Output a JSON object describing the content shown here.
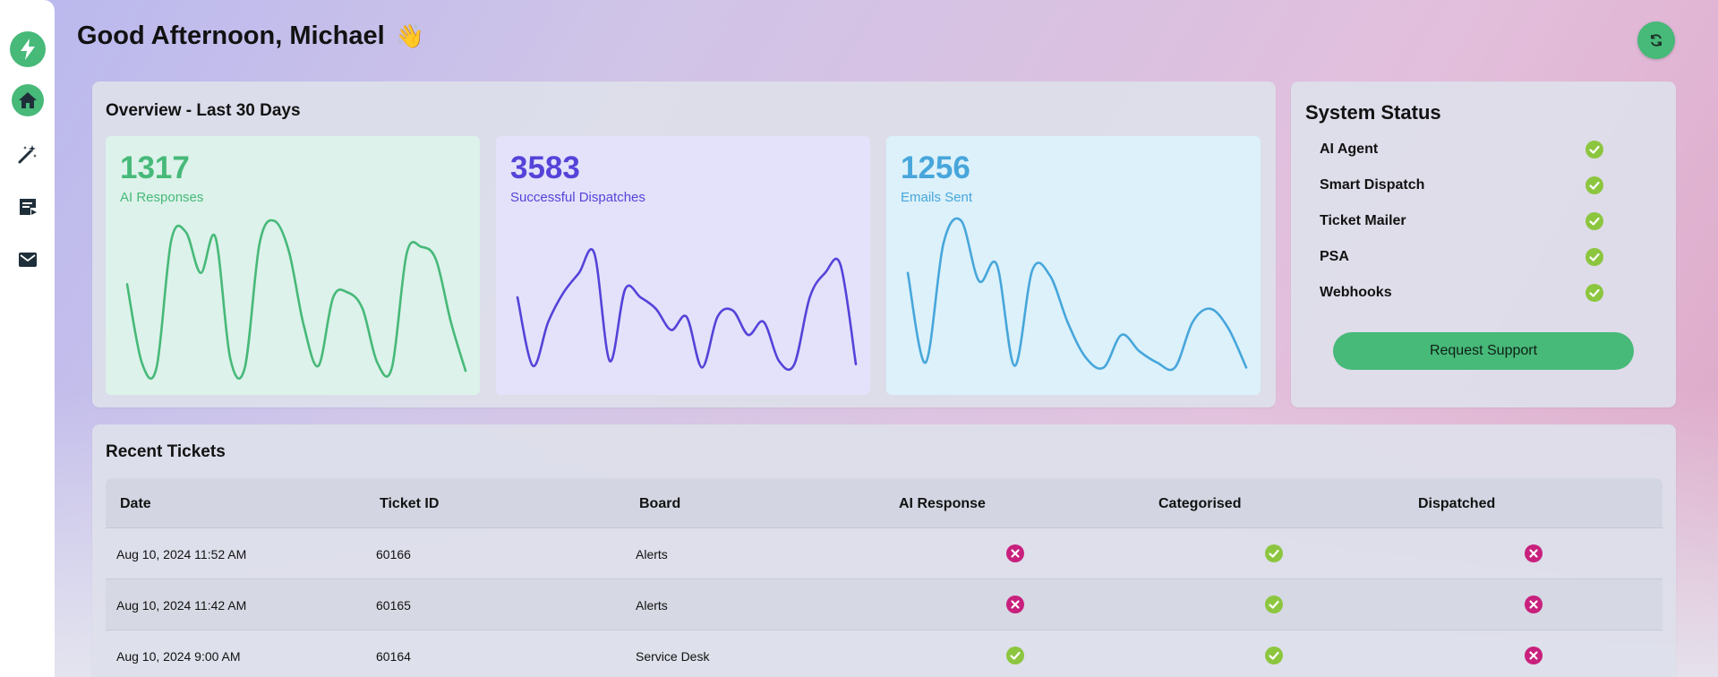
{
  "header": {
    "greeting": "Good Afternoon, Michael",
    "emoji": "👋"
  },
  "colors": {
    "brand": "#47b979",
    "ok": "#8cc63f",
    "fail": "#c8207d",
    "green_series": "#47b979",
    "purple_series": "#5543d9",
    "blue_series": "#47a6db"
  },
  "sidebar": {
    "items": [
      {
        "icon": "bolt-icon"
      },
      {
        "icon": "home-icon"
      },
      {
        "icon": "magic-wand-icon"
      },
      {
        "icon": "ticket-list-icon"
      },
      {
        "icon": "mail-icon"
      }
    ]
  },
  "overview": {
    "title": "Overview - Last 30 Days",
    "cards": [
      {
        "value": "1317",
        "label": "AI Responses",
        "color": "#47b979"
      },
      {
        "value": "3583",
        "label": "Successful Dispatches",
        "color": "#5543d9"
      },
      {
        "value": "1256",
        "label": "Emails Sent",
        "color": "#47a6db"
      }
    ]
  },
  "chart_data": [
    {
      "type": "line",
      "series": [
        {
          "values": [
            53,
            5,
            2,
            80,
            85,
            60,
            82,
            8,
            2,
            78,
            92,
            73,
            28,
            3,
            45,
            48,
            38,
            5,
            2,
            72,
            76,
            68,
            30,
            0
          ]
        }
      ]
    },
    {
      "type": "line",
      "series": [
        {
          "values": [
            45,
            3,
            30,
            48,
            60,
            72,
            6,
            50,
            45,
            38,
            25,
            33,
            2,
            33,
            37,
            22,
            30,
            6,
            4,
            45,
            60,
            65,
            4
          ]
        }
      ]
    },
    {
      "type": "line",
      "series": [
        {
          "values": [
            60,
            5,
            78,
            92,
            55,
            65,
            3,
            62,
            58,
            29,
            8,
            2,
            22,
            12,
            5,
            2,
            30,
            38,
            26,
            2
          ]
        }
      ]
    }
  ],
  "system_status": {
    "title": "System Status",
    "items": [
      {
        "label": "AI Agent",
        "status": "ok"
      },
      {
        "label": "Smart Dispatch",
        "status": "ok"
      },
      {
        "label": "Ticket Mailer",
        "status": "ok"
      },
      {
        "label": "PSA",
        "status": "ok"
      },
      {
        "label": "Webhooks",
        "status": "ok"
      }
    ],
    "support_label": "Request Support"
  },
  "tickets": {
    "title": "Recent Tickets",
    "columns": [
      "Date",
      "Ticket ID",
      "Board",
      "AI Response",
      "Categorised",
      "Dispatched"
    ],
    "rows": [
      {
        "date": "Aug 10, 2024 11:52 AM",
        "id": "60166",
        "board": "Alerts",
        "ai": "fail",
        "cat": "ok",
        "disp": "fail"
      },
      {
        "date": "Aug 10, 2024 11:42 AM",
        "id": "60165",
        "board": "Alerts",
        "ai": "fail",
        "cat": "ok",
        "disp": "fail"
      },
      {
        "date": "Aug 10, 2024 9:00 AM",
        "id": "60164",
        "board": "Service Desk",
        "ai": "ok",
        "cat": "ok",
        "disp": "fail"
      }
    ]
  }
}
